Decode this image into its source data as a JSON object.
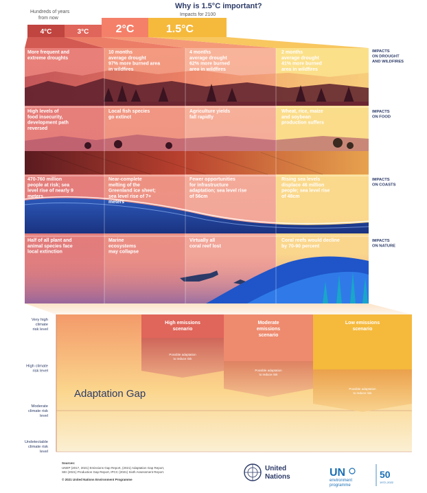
{
  "header": {
    "title": "Why is 1.5°C important?",
    "subtitle": "Impacts for 2100",
    "years_label_line1": "Hundreds of years",
    "years_label_line2": "from now"
  },
  "temperatures": [
    {
      "label": "4°C",
      "color": "#c0443f"
    },
    {
      "label": "3°C",
      "color": "#e0655a"
    },
    {
      "label": "2°C",
      "color": "#f4806a"
    },
    {
      "label": "1.5°C",
      "color": "#f5b93c"
    }
  ],
  "categories": [
    {
      "label_line1": "IMPACTS",
      "label_line2": "ON DROUGHT",
      "label_line3": "AND WILDFIRES"
    },
    {
      "label_line1": "IMPACTS",
      "label_line2": "ON FOOD",
      "label_line3": ""
    },
    {
      "label_line1": "IMPACTS",
      "label_line2": "ON COASTS",
      "label_line3": ""
    },
    {
      "label_line1": "IMPACTS",
      "label_line2": "ON NATURE",
      "label_line3": ""
    }
  ],
  "impacts": [
    [
      [
        "More frequent and",
        "extreme droughts"
      ],
      [
        "10 months",
        "average drought",
        "97% more burned area",
        "in wildfires"
      ],
      [
        "4 months",
        "average drought",
        "62% more burned",
        "area in wildfires"
      ],
      [
        "2 months",
        "average drought",
        "41% more burned",
        "area in wildfires"
      ]
    ],
    [
      [
        "High levels of",
        "food insecurity,",
        "development path",
        "reversed"
      ],
      [
        "Local fish species",
        "go extinct"
      ],
      [
        "Agriculture yields",
        "fall rapidly"
      ],
      [
        "Wheat, rice, maize",
        "and soybean",
        "production suffers"
      ]
    ],
    [
      [
        "470-760 million",
        "people at risk; sea",
        "level rise of nearly 9",
        "meters"
      ],
      [
        "Near-complete",
        "melting of the",
        "Greenland ice sheet;",
        "sea level rise of 7+",
        "meters"
      ],
      [
        "Fewer opportunities",
        "for infrastructure",
        "adaptation; sea level rise",
        "of 56cm"
      ],
      [
        "Rising sea levels",
        "displace 46 million",
        "people; sea level rise",
        "of 48cm"
      ]
    ],
    [
      [
        "Half of all plant and",
        "animal species face",
        "local extinction"
      ],
      [
        "Marine",
        "ecosystems",
        "may collapse"
      ],
      [
        "Virtually all",
        "coral reef lost"
      ],
      [
        "Coral reefs would decline",
        "by 70-90 percent"
      ]
    ]
  ],
  "risk": {
    "levels": [
      [
        "Very high",
        "climate",
        "risk level"
      ],
      [
        "High climate",
        "risk level"
      ],
      [
        "Moderate",
        "climate risk",
        "level"
      ],
      [
        "Undetectable",
        "climate risk",
        "level"
      ]
    ],
    "adaptation_gap": "Adaptation Gap",
    "scenarios": [
      {
        "name_line1": "High emissions",
        "name_line2": "scenario",
        "adapt_line1": "Possible adaptation",
        "adapt_line2": "to reduce risk",
        "color": "#e0655a"
      },
      {
        "name_line1": "Moderate",
        "name_line2": "emissions",
        "name_line3": "scenario",
        "adapt_line1": "Possible adaptation",
        "adapt_line2": "to reduce risk",
        "color": "#ee8a6e"
      },
      {
        "name_line1": "Low emissions",
        "name_line2": "scenario",
        "adapt_line1": "Possible adaptation",
        "adapt_line2": "to reduce risk",
        "color": "#f5b93c"
      }
    ]
  },
  "footer": {
    "sources_title": "Sources:",
    "sources_line1": "UNEP (2017, 2021) Emissions Gap Report, (2021) Adaptation Gap Report,",
    "sources_line2": "SEI (2021) Production Gap Report, IPCC (2021) Sixth Assessment Report.",
    "copyright": "© 2021 United Nations Environment Programme",
    "un_line1": "United",
    "un_line2": "Nations",
    "unep_short": "UN",
    "unep_line1": "environment",
    "unep_line2": "programme",
    "anniv": "50",
    "anniv_years": "1972–2022"
  }
}
